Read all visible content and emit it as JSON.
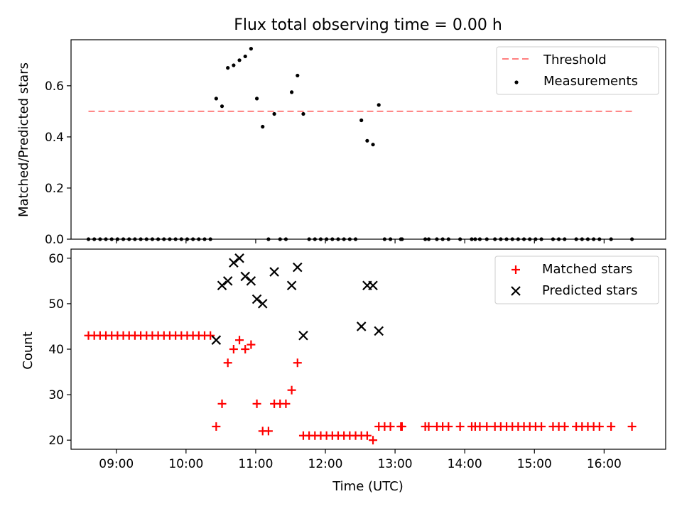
{
  "title": "Flux total observing time = 0.00 h",
  "chart_data": [
    {
      "type": "scatter",
      "ylabel": "Matched/Predicted stars",
      "xlabel": "",
      "ylim": [
        0,
        0.78
      ],
      "yticks": [
        "0.0",
        "0.2",
        "0.4",
        "0.6"
      ],
      "xlim": [
        "08:21",
        "16:53"
      ],
      "legend_position": "top-right",
      "threshold": {
        "name": "Threshold",
        "value": 0.5,
        "color": "#ff7f7f",
        "x_start": "08:36",
        "x_end": "16:24"
      },
      "series": [
        {
          "name": "Measurements",
          "color": "#000000",
          "points": [
            [
              "08:36",
              0
            ],
            [
              "08:41",
              0
            ],
            [
              "08:46",
              0
            ],
            [
              "08:51",
              0
            ],
            [
              "08:56",
              0
            ],
            [
              "09:01",
              0
            ],
            [
              "09:06",
              0
            ],
            [
              "09:11",
              0
            ],
            [
              "09:16",
              0
            ],
            [
              "09:21",
              0
            ],
            [
              "09:26",
              0
            ],
            [
              "09:31",
              0
            ],
            [
              "09:36",
              0
            ],
            [
              "09:41",
              0
            ],
            [
              "09:46",
              0
            ],
            [
              "09:51",
              0
            ],
            [
              "09:56",
              0
            ],
            [
              "10:01",
              0
            ],
            [
              "10:06",
              0
            ],
            [
              "10:11",
              0
            ],
            [
              "10:16",
              0
            ],
            [
              "10:21",
              0
            ],
            [
              "10:26",
              0.55
            ],
            [
              "10:31",
              0.52
            ],
            [
              "10:36",
              0.67
            ],
            [
              "10:41",
              0.68
            ],
            [
              "10:46",
              0.7
            ],
            [
              "10:51",
              0.715
            ],
            [
              "10:56",
              0.745
            ],
            [
              "11:01",
              0.55
            ],
            [
              "11:06",
              0.44
            ],
            [
              "11:11",
              0
            ],
            [
              "11:16",
              0.49
            ],
            [
              "11:21",
              0
            ],
            [
              "11:26",
              0
            ],
            [
              "11:31",
              0.575
            ],
            [
              "11:36",
              0.64
            ],
            [
              "11:41",
              0.49
            ],
            [
              "11:46",
              0
            ],
            [
              "11:51",
              0
            ],
            [
              "11:56",
              0
            ],
            [
              "12:01",
              0
            ],
            [
              "12:06",
              0
            ],
            [
              "12:11",
              0
            ],
            [
              "12:16",
              0
            ],
            [
              "12:21",
              0
            ],
            [
              "12:26",
              0
            ],
            [
              "12:31",
              0.465
            ],
            [
              "12:36",
              0.385
            ],
            [
              "12:41",
              0.37
            ],
            [
              "12:46",
              0.525
            ],
            [
              "12:51",
              0
            ],
            [
              "12:56",
              0
            ],
            [
              "13:05",
              0
            ],
            [
              "13:06",
              0
            ],
            [
              "13:26",
              0
            ],
            [
              "13:29",
              0
            ],
            [
              "13:36",
              0
            ],
            [
              "13:41",
              0
            ],
            [
              "13:46",
              0
            ],
            [
              "13:56",
              0
            ],
            [
              "14:06",
              0
            ],
            [
              "14:09",
              0
            ],
            [
              "14:13",
              0
            ],
            [
              "14:19",
              0
            ],
            [
              "14:26",
              0
            ],
            [
              "14:31",
              0
            ],
            [
              "14:36",
              0
            ],
            [
              "14:41",
              0
            ],
            [
              "14:46",
              0
            ],
            [
              "14:51",
              0
            ],
            [
              "14:56",
              0
            ],
            [
              "15:01",
              0
            ],
            [
              "15:06",
              0
            ],
            [
              "15:16",
              0
            ],
            [
              "15:21",
              0
            ],
            [
              "15:26",
              0
            ],
            [
              "15:36",
              0
            ],
            [
              "15:41",
              0
            ],
            [
              "15:46",
              0
            ],
            [
              "15:51",
              0
            ],
            [
              "15:56",
              0
            ],
            [
              "16:06",
              0
            ],
            [
              "16:24",
              0
            ]
          ]
        }
      ]
    },
    {
      "type": "scatter",
      "ylabel": "Count",
      "xlabel": "Time (UTC)",
      "ylim": [
        18,
        62
      ],
      "yticks": [
        "20",
        "30",
        "40",
        "50",
        "60"
      ],
      "xlim": [
        "08:21",
        "16:53"
      ],
      "xticks": [
        "09:00",
        "10:00",
        "11:00",
        "12:00",
        "13:00",
        "14:00",
        "15:00",
        "16:00"
      ],
      "legend_position": "top-right",
      "series": [
        {
          "name": "Matched stars",
          "color": "#ff0000",
          "marker": "+",
          "points": [
            [
              "08:36",
              43
            ],
            [
              "08:41",
              43
            ],
            [
              "08:46",
              43
            ],
            [
              "08:51",
              43
            ],
            [
              "08:56",
              43
            ],
            [
              "09:01",
              43
            ],
            [
              "09:06",
              43
            ],
            [
              "09:11",
              43
            ],
            [
              "09:16",
              43
            ],
            [
              "09:21",
              43
            ],
            [
              "09:26",
              43
            ],
            [
              "09:31",
              43
            ],
            [
              "09:36",
              43
            ],
            [
              "09:41",
              43
            ],
            [
              "09:46",
              43
            ],
            [
              "09:51",
              43
            ],
            [
              "09:56",
              43
            ],
            [
              "10:01",
              43
            ],
            [
              "10:06",
              43
            ],
            [
              "10:11",
              43
            ],
            [
              "10:16",
              43
            ],
            [
              "10:21",
              43
            ],
            [
              "10:26",
              23
            ],
            [
              "10:31",
              28
            ],
            [
              "10:36",
              37
            ],
            [
              "10:41",
              40
            ],
            [
              "10:46",
              42
            ],
            [
              "10:51",
              40
            ],
            [
              "10:56",
              41
            ],
            [
              "11:01",
              28
            ],
            [
              "11:06",
              22
            ],
            [
              "11:11",
              22
            ],
            [
              "11:16",
              28
            ],
            [
              "11:21",
              28
            ],
            [
              "11:26",
              28
            ],
            [
              "11:31",
              31
            ],
            [
              "11:36",
              37
            ],
            [
              "11:41",
              21
            ],
            [
              "11:46",
              21
            ],
            [
              "11:51",
              21
            ],
            [
              "11:56",
              21
            ],
            [
              "12:01",
              21
            ],
            [
              "12:06",
              21
            ],
            [
              "12:11",
              21
            ],
            [
              "12:16",
              21
            ],
            [
              "12:21",
              21
            ],
            [
              "12:26",
              21
            ],
            [
              "12:31",
              21
            ],
            [
              "12:36",
              21
            ],
            [
              "12:41",
              20
            ],
            [
              "12:46",
              23
            ],
            [
              "12:51",
              23
            ],
            [
              "12:56",
              23
            ],
            [
              "13:05",
              23
            ],
            [
              "13:06",
              23
            ],
            [
              "13:26",
              23
            ],
            [
              "13:29",
              23
            ],
            [
              "13:36",
              23
            ],
            [
              "13:41",
              23
            ],
            [
              "13:46",
              23
            ],
            [
              "13:56",
              23
            ],
            [
              "14:06",
              23
            ],
            [
              "14:09",
              23
            ],
            [
              "14:13",
              23
            ],
            [
              "14:19",
              23
            ],
            [
              "14:26",
              23
            ],
            [
              "14:31",
              23
            ],
            [
              "14:36",
              23
            ],
            [
              "14:41",
              23
            ],
            [
              "14:46",
              23
            ],
            [
              "14:51",
              23
            ],
            [
              "14:56",
              23
            ],
            [
              "15:01",
              23
            ],
            [
              "15:06",
              23
            ],
            [
              "15:16",
              23
            ],
            [
              "15:21",
              23
            ],
            [
              "15:26",
              23
            ],
            [
              "15:36",
              23
            ],
            [
              "15:41",
              23
            ],
            [
              "15:46",
              23
            ],
            [
              "15:51",
              23
            ],
            [
              "15:56",
              23
            ],
            [
              "16:06",
              23
            ],
            [
              "16:24",
              23
            ]
          ]
        },
        {
          "name": "Predicted stars",
          "color": "#000000",
          "marker": "x",
          "points": [
            [
              "10:26",
              42
            ],
            [
              "10:31",
              54
            ],
            [
              "10:36",
              55
            ],
            [
              "10:41",
              59
            ],
            [
              "10:46",
              60
            ],
            [
              "10:51",
              56
            ],
            [
              "10:56",
              55
            ],
            [
              "11:01",
              51
            ],
            [
              "11:06",
              50
            ],
            [
              "11:16",
              57
            ],
            [
              "11:31",
              54
            ],
            [
              "11:36",
              58
            ],
            [
              "11:41",
              43
            ],
            [
              "12:31",
              45
            ],
            [
              "12:36",
              54
            ],
            [
              "12:41",
              54
            ],
            [
              "12:46",
              44
            ]
          ]
        }
      ]
    }
  ]
}
